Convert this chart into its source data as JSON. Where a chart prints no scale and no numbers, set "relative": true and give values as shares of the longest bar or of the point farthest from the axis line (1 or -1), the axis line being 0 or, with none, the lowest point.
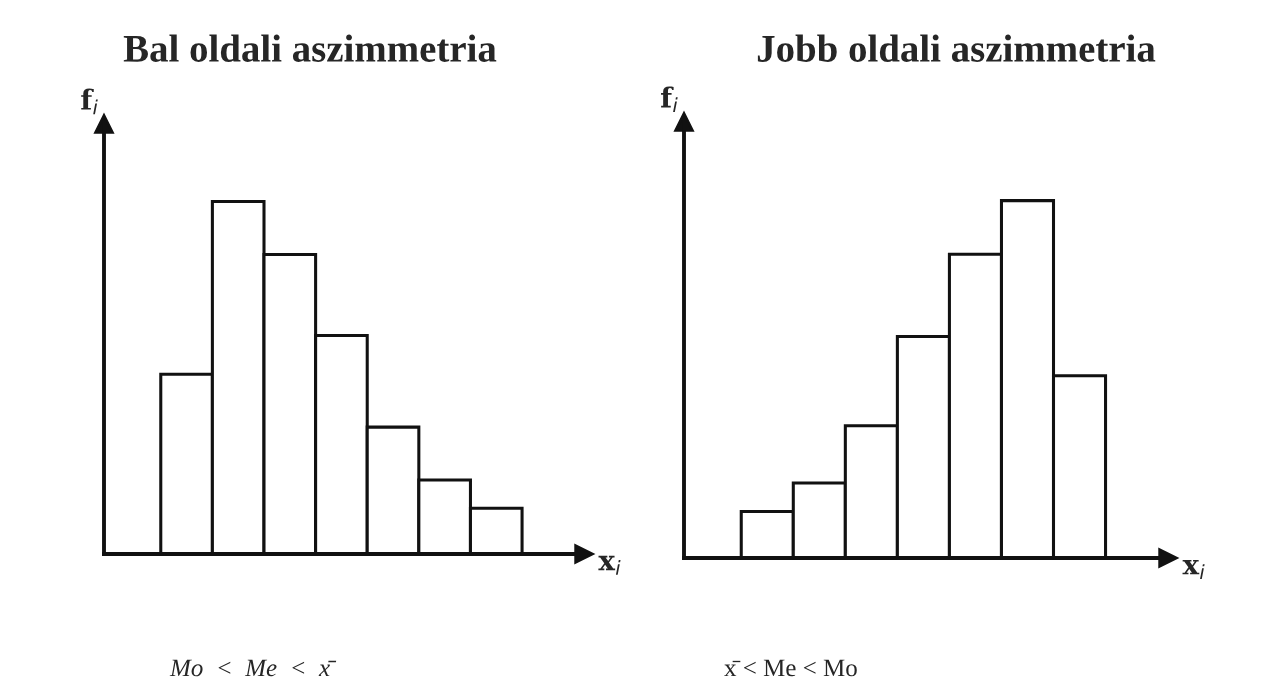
{
  "chart_data": [
    {
      "type": "bar",
      "title": "Bal oldali aszimmetria",
      "xlabel": "x$_{i}$",
      "ylabel": "f$_{i}$",
      "relative": true,
      "categories": [
        null,
        null,
        null,
        null,
        null,
        null,
        null
      ],
      "series": [
        {
          "color": "#ffffff",
          "values": [
            0.51,
            1,
            0.85,
            0.62,
            0.36,
            0.21,
            0.13
          ]
        }
      ],
      "annotations": [
        "Mo  <  Me  <  x̄"
      ]
    },
    {
      "type": "bar",
      "title": "Jobb oldali aszimmetria",
      "xlabel": "x$_{i}$",
      "ylabel": "f$_{i}$",
      "relative": true,
      "categories": [
        null,
        null,
        null,
        null,
        null,
        null,
        null
      ],
      "series": [
        {
          "color": "#ffffff",
          "values": [
            0.13,
            0.21,
            0.37,
            0.62,
            0.85,
            1,
            0.51
          ]
        }
      ],
      "annotations": [
        "x̄ < Me < Mo"
      ]
    }
  ]
}
